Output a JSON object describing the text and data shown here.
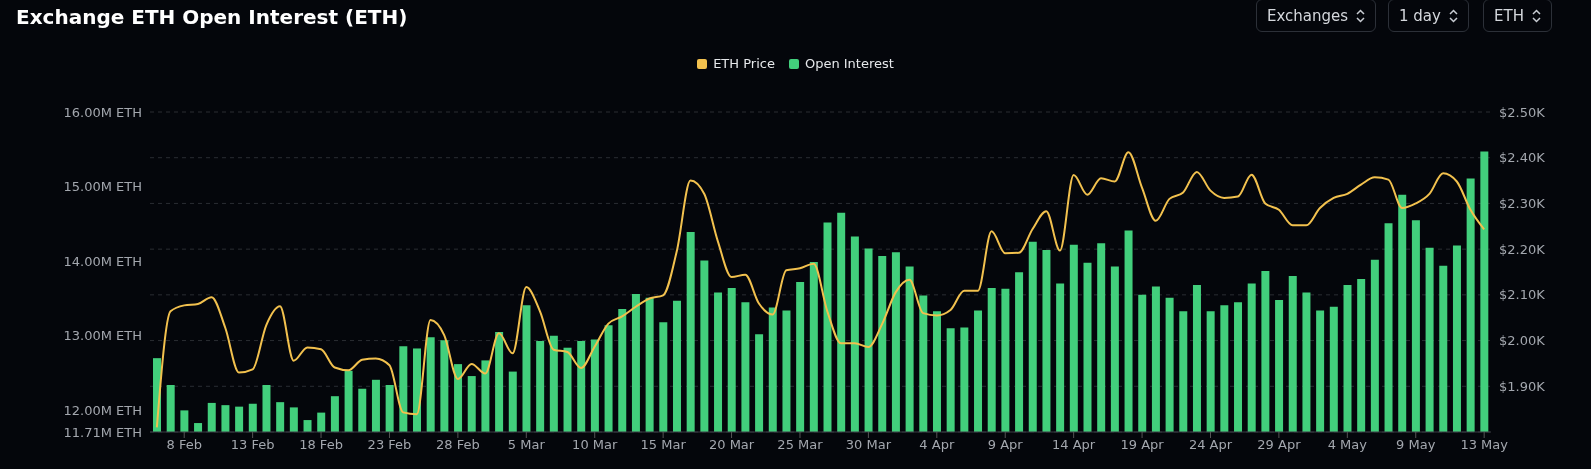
{
  "chart_data": {
    "type": "bar",
    "title": "Exchange ETH Open Interest (ETH)",
    "annotations": [
      "Exchanges",
      "1 day",
      "ETH"
    ],
    "categories": [
      null,
      null,
      "8 Feb",
      null,
      null,
      null,
      null,
      "13 Feb",
      null,
      null,
      null,
      null,
      "18 Feb",
      null,
      null,
      null,
      null,
      "23 Feb",
      null,
      null,
      null,
      null,
      "28 Feb",
      null,
      null,
      null,
      null,
      "5 Mar",
      null,
      null,
      null,
      null,
      "10 Mar",
      null,
      null,
      null,
      null,
      "15 Mar",
      null,
      null,
      null,
      null,
      "20 Mar",
      null,
      null,
      null,
      null,
      "25 Mar",
      null,
      null,
      null,
      null,
      "30 Mar",
      null,
      null,
      null,
      null,
      "4 Apr",
      null,
      null,
      null,
      null,
      "9 Apr",
      null,
      null,
      null,
      null,
      "14 Apr",
      null,
      null,
      null,
      null,
      "19 Apr",
      null,
      null,
      null,
      null,
      "24 Apr",
      null,
      null,
      null,
      null,
      "29 Apr",
      null,
      null,
      null,
      null,
      "4 May",
      null,
      null,
      null,
      null,
      "9 May",
      null,
      null,
      null,
      null,
      "13 May"
    ],
    "series": [
      {
        "name": "ETH Price",
        "type": "line",
        "axis": "y2",
        "color": "#f2c14e",
        "values": [
          1.81,
          2.064,
          2.077,
          2.08,
          2.095,
          2.028,
          1.93,
          1.937,
          2.034,
          2.075,
          1.956,
          1.985,
          1.981,
          1.941,
          1.935,
          1.958,
          1.961,
          1.946,
          1.843,
          1.839,
          2.045,
          2.012,
          1.916,
          1.949,
          1.928,
          2.016,
          1.972,
          2.117,
          2.064,
          1.98,
          1.975,
          1.94,
          1.987,
          2.037,
          2.053,
          2.074,
          2.092,
          2.099,
          2.196,
          2.35,
          2.321,
          2.217,
          2.139,
          2.144,
          2.081,
          2.057,
          2.154,
          2.158,
          2.168,
          2.064,
          1.994,
          1.994,
          1.986,
          2.036,
          2.106,
          2.133,
          2.06,
          2.055,
          2.067,
          2.109,
          2.109,
          2.239,
          2.191,
          2.192,
          2.244,
          2.283,
          2.197,
          2.362,
          2.319,
          2.355,
          2.348,
          2.412,
          2.334,
          2.262,
          2.31,
          2.324,
          2.369,
          2.328,
          2.312,
          2.315,
          2.363,
          2.3,
          2.286,
          2.252,
          2.252,
          2.29,
          2.312,
          2.321,
          2.341,
          2.357,
          2.352,
          2.29,
          2.3,
          2.321,
          2.366,
          2.348,
          2.286,
          2.243
        ]
      },
      {
        "name": "Open Interest",
        "color": "#42cf7c",
        "values": [
          12.7,
          12.34,
          12.0,
          11.83,
          12.1,
          12.07,
          12.05,
          12.09,
          12.34,
          12.11,
          12.04,
          11.87,
          11.97,
          12.19,
          12.53,
          12.29,
          12.41,
          12.34,
          12.86,
          12.83,
          12.98,
          12.94,
          12.62,
          12.46,
          12.67,
          13.05,
          12.52,
          13.41,
          12.93,
          13.0,
          12.84,
          12.93,
          12.95,
          13.14,
          13.36,
          13.56,
          13.51,
          13.18,
          13.47,
          14.39,
          14.01,
          13.58,
          13.64,
          13.45,
          13.02,
          13.38,
          13.34,
          13.72,
          13.99,
          14.52,
          14.65,
          14.33,
          14.17,
          14.07,
          14.12,
          13.93,
          13.54,
          13.33,
          13.1,
          13.11,
          13.34,
          13.64,
          13.63,
          13.85,
          14.26,
          14.15,
          13.7,
          14.22,
          13.98,
          14.24,
          13.93,
          14.41,
          13.55,
          13.66,
          13.51,
          13.33,
          13.68,
          13.33,
          13.41,
          13.45,
          13.7,
          13.87,
          13.48,
          13.8,
          13.58,
          13.34,
          13.39,
          13.68,
          13.76,
          14.02,
          14.51,
          14.89,
          14.55,
          14.18,
          13.94,
          14.21,
          15.11,
          15.47
        ]
      }
    ],
    "ylim": [
      11.71,
      16
    ],
    "yticks": [
      {
        "value": 11.71,
        "label": "11.71M ETH"
      },
      {
        "value": 12,
        "label": "12.00M ETH"
      },
      {
        "value": 13,
        "label": "13.00M ETH"
      },
      {
        "value": 14,
        "label": "14.00M ETH"
      },
      {
        "value": 15,
        "label": "15.00M ETH"
      },
      {
        "value": 16,
        "label": "16.00M ETH"
      }
    ],
    "y2lim": [
      1.8,
      2.5
    ],
    "y2ticks": [
      {
        "value": 1.9,
        "label": "$1.90K"
      },
      {
        "value": 2.0,
        "label": "$2.00K"
      },
      {
        "value": 2.1,
        "label": "$2.10K"
      },
      {
        "value": 2.2,
        "label": "$2.20K"
      },
      {
        "value": 2.3,
        "label": "$2.30K"
      },
      {
        "value": 2.4,
        "label": "$2.40K"
      },
      {
        "value": 2.5,
        "label": "$2.50K"
      }
    ],
    "grid": "y",
    "legend": "top"
  }
}
